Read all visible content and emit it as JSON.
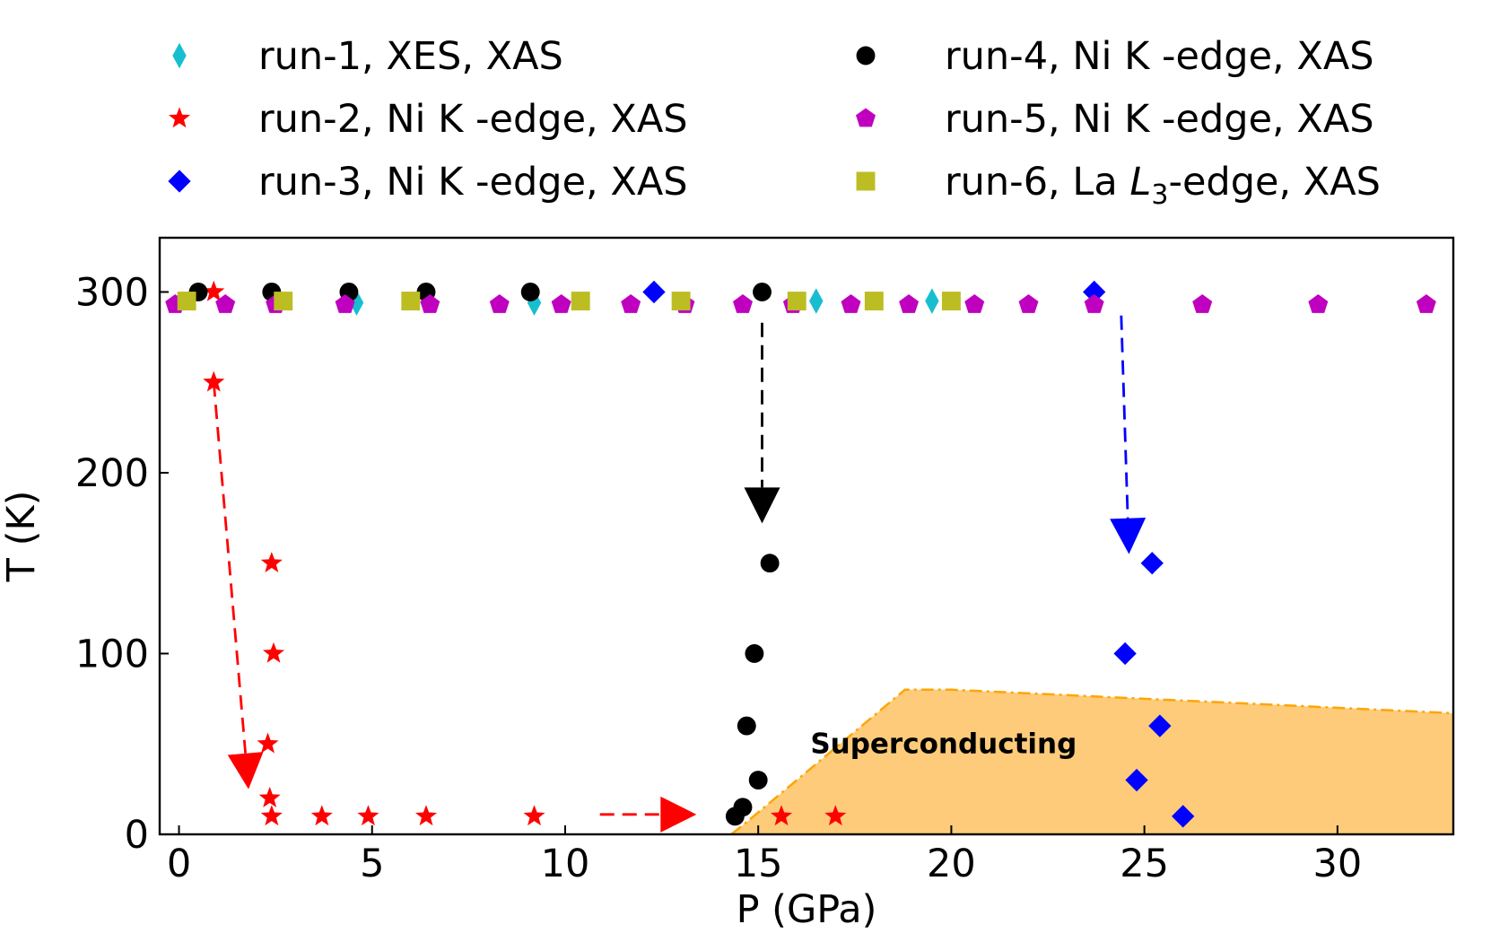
{
  "chart_data": {
    "type": "scatter",
    "xlabel": "P (GPa)",
    "ylabel": "T (K)",
    "xlim": [
      -0.5,
      33
    ],
    "ylim": [
      0,
      330
    ],
    "xticks": [
      0,
      5,
      10,
      15,
      20,
      25,
      30
    ],
    "yticks": [
      0,
      100,
      200,
      300
    ],
    "grid": false,
    "legend_position": "top, above plot, two columns",
    "series": [
      {
        "name": "run-1",
        "legend": "run-1, XES, XAS",
        "marker": "thin_diamond",
        "color": "#17becf",
        "points": [
          [
            4.6,
            294
          ],
          [
            9.2,
            294
          ],
          [
            16.5,
            295
          ],
          [
            19.5,
            295
          ]
        ]
      },
      {
        "name": "run-2",
        "legend": "run-2, Ni K -edge, XAS",
        "marker": "star",
        "color": "#ff0000",
        "points": [
          [
            0.9,
            300
          ],
          [
            0.9,
            250
          ],
          [
            2.4,
            150
          ],
          [
            2.45,
            100
          ],
          [
            2.3,
            50
          ],
          [
            2.35,
            20
          ],
          [
            2.4,
            10
          ],
          [
            3.7,
            10
          ],
          [
            4.9,
            10
          ],
          [
            6.4,
            10
          ],
          [
            9.2,
            10
          ],
          [
            15.6,
            10
          ],
          [
            17.0,
            10
          ]
        ]
      },
      {
        "name": "run-3",
        "legend": "run-3, Ni K -edge, XAS",
        "marker": "diamond",
        "color": "#0000ff",
        "points": [
          [
            12.3,
            300
          ],
          [
            23.7,
            300
          ],
          [
            25.2,
            150
          ],
          [
            24.5,
            100
          ],
          [
            25.4,
            60
          ],
          [
            24.8,
            30
          ],
          [
            26.0,
            10
          ]
        ]
      },
      {
        "name": "run-4",
        "legend": "run-4, Ni K -edge, XAS",
        "marker": "circle",
        "color": "#000000",
        "points": [
          [
            0.5,
            300
          ],
          [
            2.4,
            300
          ],
          [
            4.4,
            300
          ],
          [
            6.4,
            300
          ],
          [
            9.1,
            300
          ],
          [
            15.1,
            300
          ],
          [
            15.3,
            150
          ],
          [
            14.9,
            100
          ],
          [
            14.7,
            60
          ],
          [
            15.0,
            30
          ],
          [
            14.6,
            15
          ],
          [
            14.4,
            10
          ]
        ]
      },
      {
        "name": "run-5",
        "legend": "run-5, Ni K -edge, XAS",
        "marker": "pentagon",
        "color": "#bf00bf",
        "points": [
          [
            -0.1,
            293
          ],
          [
            1.2,
            293
          ],
          [
            2.5,
            293
          ],
          [
            4.3,
            293
          ],
          [
            6.5,
            293
          ],
          [
            8.3,
            293
          ],
          [
            9.9,
            293
          ],
          [
            11.7,
            293
          ],
          [
            13.1,
            293
          ],
          [
            14.6,
            293
          ],
          [
            15.9,
            293
          ],
          [
            17.4,
            293
          ],
          [
            18.9,
            293
          ],
          [
            20.6,
            293
          ],
          [
            22.0,
            293
          ],
          [
            23.7,
            293
          ],
          [
            26.5,
            293
          ],
          [
            29.5,
            293
          ],
          [
            32.3,
            293
          ]
        ]
      },
      {
        "name": "run-6",
        "legend": "run-6, La L3-edge, XAS",
        "legend_parts": [
          "run-6, La ",
          "L",
          "3",
          "-edge, XAS"
        ],
        "marker": "square",
        "color": "#bcbd22",
        "points": [
          [
            0.2,
            295
          ],
          [
            2.7,
            295
          ],
          [
            6.0,
            295
          ],
          [
            10.4,
            295
          ],
          [
            13.0,
            295
          ],
          [
            16.0,
            295
          ],
          [
            18.0,
            295
          ],
          [
            20.0,
            295
          ]
        ]
      }
    ],
    "arrows": [
      {
        "color": "#ff0000",
        "from": [
          0.9,
          250
        ],
        "to": [
          1.8,
          25
        ]
      },
      {
        "color": "#ff0000",
        "from": [
          10.9,
          11
        ],
        "to": [
          13.4,
          11
        ]
      },
      {
        "color": "#000000",
        "from": [
          15.1,
          283
        ],
        "to": [
          15.1,
          172
        ]
      },
      {
        "color": "#0000ff",
        "from": [
          24.4,
          287
        ],
        "to": [
          24.6,
          155
        ]
      }
    ],
    "region": {
      "label": "Superconducting",
      "fill": "#fdcb7a",
      "edge_color": "#ffa500",
      "label_color": "#22aa22",
      "label_at": [
        19.8,
        45
      ],
      "boundary": [
        [
          14.3,
          0
        ],
        [
          14.6,
          5
        ],
        [
          18.8,
          80
        ],
        [
          20.0,
          80
        ],
        [
          33.0,
          67
        ],
        [
          33.0,
          0
        ]
      ]
    }
  }
}
